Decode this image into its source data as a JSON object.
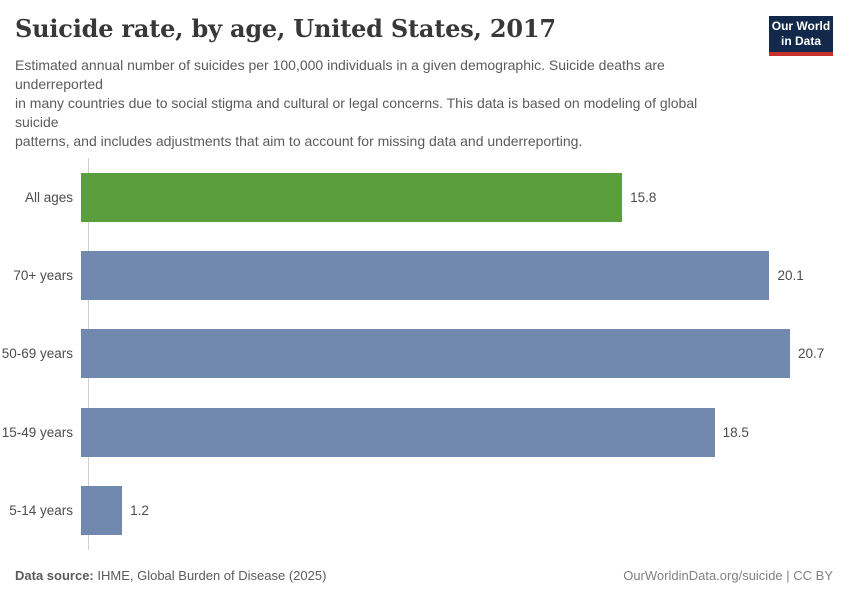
{
  "header": {
    "title": "Suicide rate, by age, United States, 2017",
    "subtitle": "Estimated annual number of suicides per 100,000 individuals in a given demographic. Suicide deaths are\nunderreported\nin many countries due to social stigma and cultural or legal concerns. This data is based on modeling of global\nsuicide\npatterns, and includes adjustments that aim to account for missing data and underreporting.",
    "logo": {
      "line1": "Our World",
      "line2": "in Data"
    }
  },
  "chart_data": {
    "type": "bar",
    "orientation": "horizontal",
    "title": "Suicide rate, by age, United States, 2017",
    "categories": [
      "All ages",
      "70+ years",
      "50-69 years",
      "15-49 years",
      "5-14 years"
    ],
    "values": [
      15.8,
      20.1,
      20.7,
      18.5,
      1.2
    ],
    "value_labels": [
      "15.8",
      "20.1",
      "20.7",
      "18.5",
      "1.2"
    ],
    "bar_colors": [
      "#5b9e3d",
      "#7189ae",
      "#7189ae",
      "#7189ae",
      "#7189ae"
    ],
    "xlim": [
      0,
      20.7
    ],
    "xlabel": "",
    "ylabel": "",
    "grid": false,
    "legend": "none"
  },
  "footer": {
    "source_label": "Data source:",
    "source_text": " IHME, Global Burden of Disease (2025)",
    "credit": "OurWorldinData.org/suicide | CC BY"
  },
  "colors": {
    "highlight_green": "#5b9e3d",
    "bar_blue": "#7189ae",
    "logo_navy": "#12294c",
    "logo_red": "#c7302b",
    "axis_gray": "#cfcfcf"
  }
}
